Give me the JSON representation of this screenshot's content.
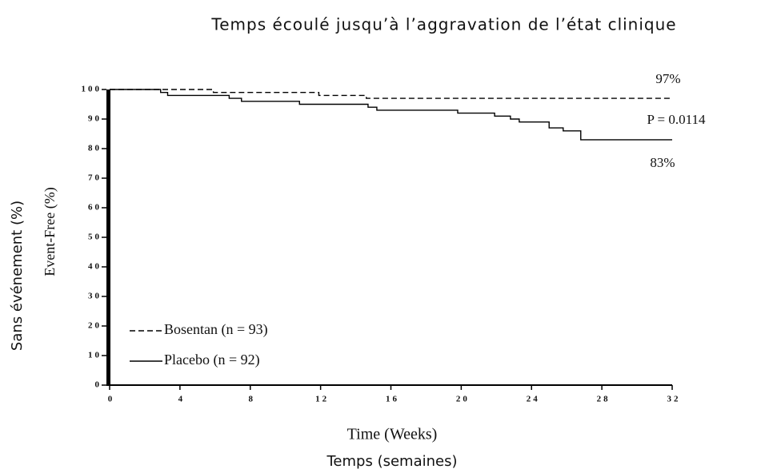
{
  "chart_data": {
    "type": "line",
    "step": true,
    "title": "Temps écoulé jusqu’à l’aggravation de l’état clinique",
    "y_label": "Sans événement (%)",
    "y_label_original": "Event-Free (%)",
    "x_label_original": "Time (Weeks)",
    "x_label": "Temps (semaines)",
    "x": [
      0,
      2.9,
      3.3,
      5.9,
      6.8,
      7.5,
      10.8,
      11.9,
      14.6,
      14.7,
      15.2,
      19.8,
      21.9,
      22.8,
      23.3,
      25,
      25.8,
      26.8,
      32
    ],
    "series": [
      {
        "name": "Bosentan (n = 93)",
        "color": "#000000",
        "dash": true,
        "values": [
          100,
          100,
          100,
          99,
          99,
          99,
          99,
          98,
          97,
          97,
          97,
          97,
          97,
          97,
          97,
          97,
          97,
          97,
          97
        ]
      },
      {
        "name": "Placebo (n = 92)",
        "color": "#000000",
        "dash": false,
        "values": [
          100,
          99,
          98,
          98,
          97,
          96,
          95,
          95,
          95,
          94,
          93,
          92,
          91,
          90,
          89,
          87,
          86,
          83,
          83
        ]
      }
    ],
    "annotations": [
      "97%",
      "P =  0.0114",
      "83%"
    ],
    "xlim": [
      0,
      32
    ],
    "xticks": [
      0,
      4,
      8,
      12,
      16,
      20,
      24,
      28,
      32
    ],
    "ylim": [
      0,
      100
    ],
    "yticks": [
      0,
      10,
      20,
      30,
      40,
      50,
      60,
      70,
      80,
      90,
      100
    ],
    "grid": false,
    "legend": "lower left"
  }
}
